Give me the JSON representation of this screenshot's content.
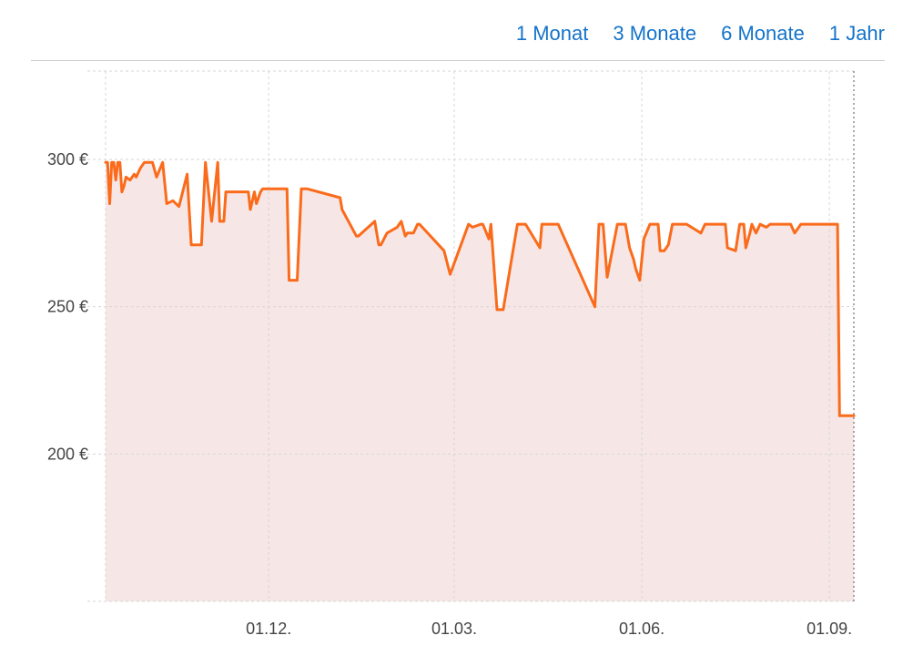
{
  "range_nav": {
    "one_month": "1 Monat",
    "three_months": "3 Monate",
    "six_months": "6 Monate",
    "one_year": "1 Jahr"
  },
  "colors": {
    "line": "#fa6b1b",
    "fill": "#f7e6e6",
    "grid": "#d6d6d6",
    "link": "#1473c9"
  },
  "chart_data": {
    "type": "area",
    "title": "",
    "xlabel": "",
    "ylabel": "",
    "grid": true,
    "ylim": [
      150,
      330
    ],
    "xlim": [
      "2023-09-12",
      "2024-09-13"
    ],
    "y_ticks": [
      {
        "value": 200,
        "label": "200 €"
      },
      {
        "value": 250,
        "label": "250 €"
      },
      {
        "value": 300,
        "label": "300 €"
      }
    ],
    "x_ticks": [
      {
        "date": "2023-12-01",
        "label": "01.12."
      },
      {
        "date": "2024-03-01",
        "label": "01.03."
      },
      {
        "date": "2024-06-01",
        "label": "01.06."
      },
      {
        "date": "2024-09-01",
        "label": "01.09."
      }
    ],
    "series": [
      {
        "x": [
          "2023-09-12",
          "2023-09-13",
          "2023-09-14",
          "2023-09-15",
          "2023-09-16",
          "2023-09-17",
          "2023-09-18",
          "2023-09-19",
          "2023-09-20",
          "2023-09-21",
          "2023-09-22",
          "2023-09-24",
          "2023-09-26",
          "2023-09-27",
          "2023-09-29",
          "2023-10-01",
          "2023-10-03",
          "2023-10-05",
          "2023-10-07",
          "2023-10-10",
          "2023-10-12",
          "2023-10-15",
          "2023-10-18",
          "2023-10-22",
          "2023-10-24",
          "2023-10-26",
          "2023-10-28",
          "2023-10-29",
          "2023-10-31",
          "2023-11-03",
          "2023-11-06",
          "2023-11-07",
          "2023-11-09",
          "2023-11-10",
          "2023-11-21",
          "2023-11-22",
          "2023-11-24",
          "2023-11-25",
          "2023-11-27",
          "2023-11-28",
          "2023-11-30",
          "2023-12-08",
          "2023-12-09",
          "2023-12-10",
          "2023-12-11",
          "2023-12-12",
          "2023-12-15",
          "2023-12-17",
          "2023-12-20",
          "2024-01-05",
          "2024-01-06",
          "2024-01-13",
          "2024-01-14",
          "2024-01-22",
          "2024-01-24",
          "2024-01-25",
          "2024-01-28",
          "2024-02-02",
          "2024-02-04",
          "2024-02-06",
          "2024-02-07",
          "2024-02-09",
          "2024-02-10",
          "2024-02-12",
          "2024-02-13",
          "2024-02-25",
          "2024-02-28",
          "2024-03-08",
          "2024-03-10",
          "2024-03-14",
          "2024-03-15",
          "2024-03-18",
          "2024-03-19",
          "2024-03-22",
          "2024-03-25",
          "2024-04-01",
          "2024-04-02",
          "2024-04-03",
          "2024-04-05",
          "2024-04-12",
          "2024-04-13",
          "2024-04-18",
          "2024-04-21",
          "2024-05-09",
          "2024-05-11",
          "2024-05-13",
          "2024-05-15",
          "2024-05-20",
          "2024-05-22",
          "2024-05-24",
          "2024-05-26",
          "2024-05-28",
          "2024-05-29",
          "2024-05-31",
          "2024-06-02",
          "2024-06-05",
          "2024-06-07",
          "2024-06-09",
          "2024-06-10",
          "2024-06-12",
          "2024-06-14",
          "2024-06-16",
          "2024-06-22",
          "2024-06-23",
          "2024-06-30",
          "2024-07-02",
          "2024-07-12",
          "2024-07-13",
          "2024-07-17",
          "2024-07-19",
          "2024-07-21",
          "2024-07-22",
          "2024-07-24",
          "2024-07-25",
          "2024-07-27",
          "2024-07-29",
          "2024-08-01",
          "2024-08-03",
          "2024-08-05",
          "2024-08-08",
          "2024-08-10",
          "2024-08-13",
          "2024-08-15",
          "2024-08-18",
          "2024-08-20",
          "2024-08-22",
          "2024-08-25",
          "2024-09-05",
          "2024-09-06",
          "2024-09-12",
          "2024-09-13"
        ],
        "values": [
          299,
          299,
          285,
          299,
          299,
          293,
          299,
          299,
          289,
          291,
          294,
          293,
          295,
          294,
          297,
          299,
          299,
          299,
          294,
          299,
          285,
          286,
          284,
          295,
          271,
          271,
          271,
          271,
          299,
          279,
          299,
          279,
          279,
          289,
          289,
          283,
          289,
          285,
          289,
          290,
          290,
          290,
          290,
          290,
          259,
          259,
          259,
          290,
          290,
          287,
          283,
          274,
          274,
          279,
          271,
          271,
          275,
          277,
          279,
          274,
          275,
          275,
          275,
          278,
          278,
          269,
          261,
          278,
          277,
          278,
          278,
          273,
          278,
          249,
          249,
          278,
          278,
          278,
          278,
          270,
          278,
          278,
          278,
          250,
          278,
          278,
          260,
          278,
          278,
          278,
          270,
          266,
          263,
          259,
          273,
          278,
          278,
          278,
          269,
          269,
          271,
          278,
          278,
          278,
          275,
          278,
          278,
          270,
          269,
          278,
          278,
          270,
          275,
          278,
          275,
          278,
          277,
          278,
          278,
          278,
          278,
          278,
          275,
          278,
          278,
          278,
          278,
          278,
          213,
          213,
          213
        ]
      }
    ]
  }
}
